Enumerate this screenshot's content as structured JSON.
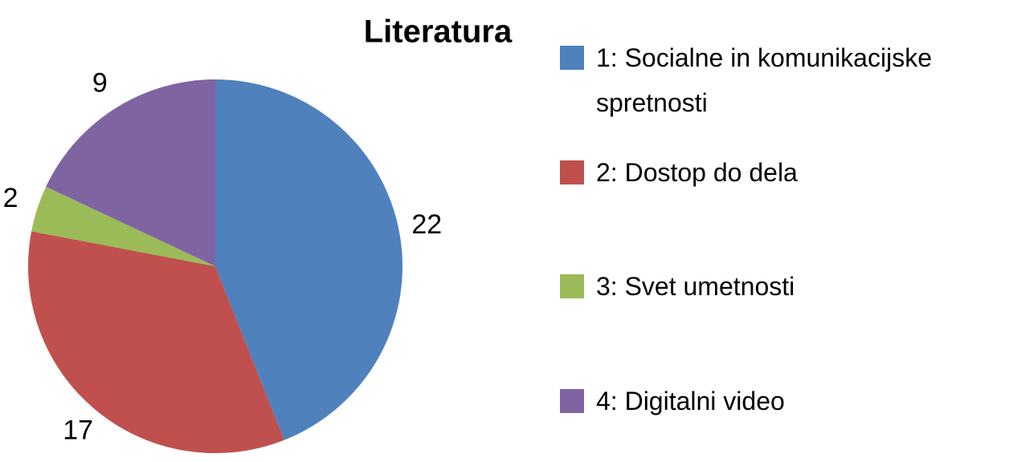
{
  "chart_data": {
    "type": "pie",
    "title": "Literatura",
    "categories": [
      "1: Socialne in komunikacijske spretnosti",
      "2: Dostop do dela",
      "3: Svet umetnosti",
      "4: Digitalni video"
    ],
    "values": [
      22,
      17,
      2,
      9
    ],
    "colors": [
      "#4f81bd",
      "#c0504d",
      "#9bbb59",
      "#8064a2"
    ],
    "legend": "right"
  }
}
